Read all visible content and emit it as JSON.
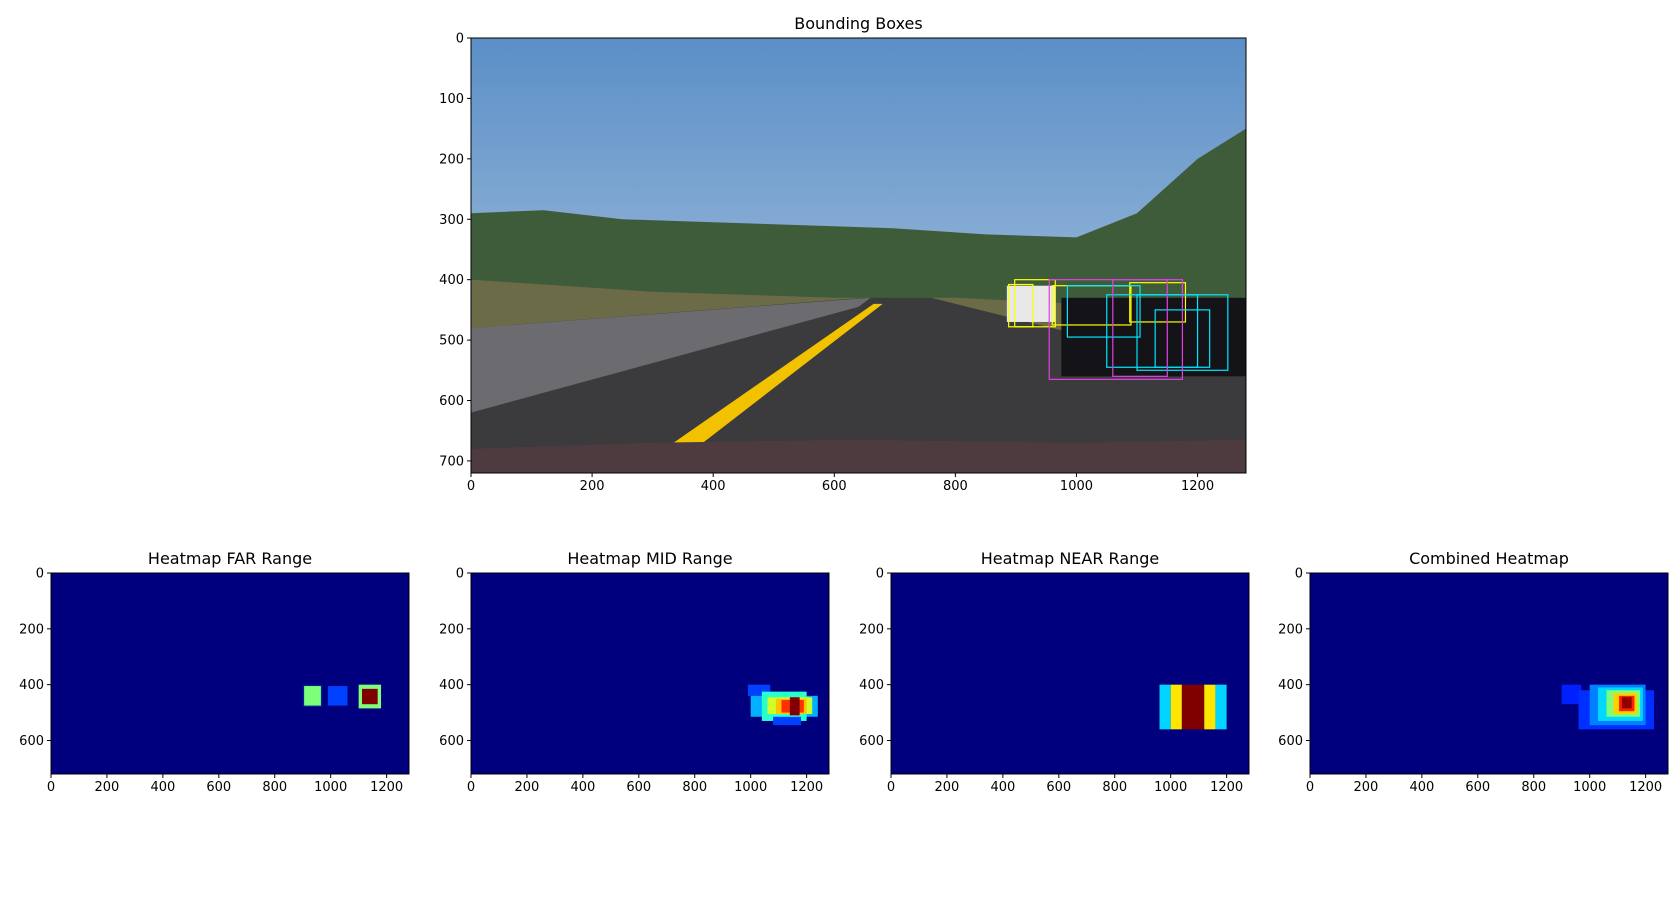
{
  "figure": {
    "background": "#ffffff",
    "text_color": "#000000"
  },
  "chart_data": [
    {
      "id": "bounding",
      "type": "image",
      "title": "Bounding Boxes",
      "xlim": [
        0,
        1280
      ],
      "ylim": [
        720,
        0
      ],
      "xticks": [
        0,
        200,
        400,
        600,
        800,
        1000,
        1200
      ],
      "yticks": [
        0,
        100,
        200,
        300,
        400,
        500,
        600,
        700
      ],
      "scene": {
        "sky_top": "#5b8fc7",
        "sky_bottom": "#b7cde3",
        "hills": "#3f5c3a",
        "road": "#3b3b3e",
        "lane_yellow": "#f2c200",
        "hood": "#4e3b3f"
      },
      "boxes": [
        {
          "color": "#ffff00",
          "x0": 888,
          "y0": 408,
          "x1": 928,
          "y1": 478
        },
        {
          "color": "#ffff00",
          "x0": 898,
          "y0": 400,
          "x1": 965,
          "y1": 478
        },
        {
          "color": "#ffff00",
          "x0": 960,
          "y0": 410,
          "x1": 1090,
          "y1": 475
        },
        {
          "color": "#ffff00",
          "x0": 1088,
          "y0": 405,
          "x1": 1180,
          "y1": 470
        },
        {
          "color": "#00e5ff",
          "x0": 985,
          "y0": 410,
          "x1": 1105,
          "y1": 495
        },
        {
          "color": "#00e5ff",
          "x0": 1050,
          "y0": 425,
          "x1": 1200,
          "y1": 545
        },
        {
          "color": "#00e5ff",
          "x0": 1100,
          "y0": 425,
          "x1": 1250,
          "y1": 550
        },
        {
          "color": "#00e5ff",
          "x0": 1130,
          "y0": 450,
          "x1": 1220,
          "y1": 545
        },
        {
          "color": "#e040e0",
          "x0": 955,
          "y0": 400,
          "x1": 1175,
          "y1": 565
        },
        {
          "color": "#e040e0",
          "x0": 1060,
          "y0": 400,
          "x1": 1150,
          "y1": 560
        }
      ]
    },
    {
      "id": "far",
      "type": "heatmap",
      "title": "Heatmap FAR Range",
      "xlim": [
        0,
        1280
      ],
      "ylim": [
        720,
        0
      ],
      "xticks": [
        0,
        200,
        400,
        600,
        800,
        1000,
        1200
      ],
      "yticks": [
        0,
        200,
        400,
        600
      ],
      "background": "#00007f",
      "cells": [
        {
          "x0": 900,
          "y0": 400,
          "x1": 970,
          "y1": 480,
          "color": "#00228c"
        },
        {
          "x0": 905,
          "y0": 405,
          "x1": 965,
          "y1": 475,
          "color": "#7dff7a"
        },
        {
          "x0": 990,
          "y0": 405,
          "x1": 1060,
          "y1": 475,
          "color": "#0040ff"
        },
        {
          "x0": 1100,
          "y0": 400,
          "x1": 1180,
          "y1": 485,
          "color": "#7dff7a"
        },
        {
          "x0": 1112,
          "y0": 415,
          "x1": 1168,
          "y1": 470,
          "color": "#800000"
        }
      ]
    },
    {
      "id": "mid",
      "type": "heatmap",
      "title": "Heatmap MID Range",
      "xlim": [
        0,
        1280
      ],
      "ylim": [
        720,
        0
      ],
      "xticks": [
        0,
        200,
        400,
        600,
        800,
        1000,
        1200
      ],
      "yticks": [
        0,
        200,
        400,
        600
      ],
      "background": "#00007f",
      "cells": [
        {
          "x0": 990,
          "y0": 400,
          "x1": 1070,
          "y1": 440,
          "color": "#0040ff"
        },
        {
          "x0": 1000,
          "y0": 440,
          "x1": 1240,
          "y1": 515,
          "color": "#00b0ff"
        },
        {
          "x0": 1040,
          "y0": 425,
          "x1": 1200,
          "y1": 530,
          "color": "#29ffce"
        },
        {
          "x0": 1080,
          "y0": 515,
          "x1": 1180,
          "y1": 545,
          "color": "#0040ff"
        },
        {
          "x0": 1060,
          "y0": 445,
          "x1": 1220,
          "y1": 505,
          "color": "#ceff29"
        },
        {
          "x0": 1090,
          "y0": 450,
          "x1": 1200,
          "y1": 505,
          "color": "#ffc400"
        },
        {
          "x0": 1110,
          "y0": 455,
          "x1": 1190,
          "y1": 500,
          "color": "#ff3000"
        },
        {
          "x0": 1140,
          "y0": 445,
          "x1": 1175,
          "y1": 510,
          "color": "#800000"
        }
      ]
    },
    {
      "id": "near",
      "type": "heatmap",
      "title": "Heatmap NEAR Range",
      "xlim": [
        0,
        1280
      ],
      "ylim": [
        720,
        0
      ],
      "xticks": [
        0,
        200,
        400,
        600,
        800,
        1000,
        1200
      ],
      "yticks": [
        0,
        200,
        400,
        600
      ],
      "background": "#00007f",
      "cells": [
        {
          "x0": 960,
          "y0": 400,
          "x1": 1000,
          "y1": 560,
          "color": "#00d4ff"
        },
        {
          "x0": 1000,
          "y0": 400,
          "x1": 1040,
          "y1": 560,
          "color": "#ffe600"
        },
        {
          "x0": 1040,
          "y0": 400,
          "x1": 1120,
          "y1": 560,
          "color": "#800000"
        },
        {
          "x0": 1120,
          "y0": 400,
          "x1": 1160,
          "y1": 560,
          "color": "#ffe600"
        },
        {
          "x0": 1160,
          "y0": 400,
          "x1": 1200,
          "y1": 560,
          "color": "#00d4ff"
        }
      ]
    },
    {
      "id": "combined",
      "type": "heatmap",
      "title": "Combined Heatmap",
      "xlim": [
        0,
        1280
      ],
      "ylim": [
        720,
        0
      ],
      "xticks": [
        0,
        200,
        400,
        600,
        800,
        1000,
        1200
      ],
      "yticks": [
        0,
        200,
        400,
        600
      ],
      "background": "#00007f",
      "cells": [
        {
          "x0": 900,
          "y0": 400,
          "x1": 970,
          "y1": 470,
          "color": "#0020ff"
        },
        {
          "x0": 960,
          "y0": 420,
          "x1": 1230,
          "y1": 560,
          "color": "#0030ff"
        },
        {
          "x0": 1000,
          "y0": 400,
          "x1": 1200,
          "y1": 545,
          "color": "#0080ff"
        },
        {
          "x0": 1030,
          "y0": 410,
          "x1": 1190,
          "y1": 530,
          "color": "#00d8ff"
        },
        {
          "x0": 1060,
          "y0": 420,
          "x1": 1180,
          "y1": 515,
          "color": "#7dff7a"
        },
        {
          "x0": 1085,
          "y0": 430,
          "x1": 1170,
          "y1": 505,
          "color": "#ffd000"
        },
        {
          "x0": 1105,
          "y0": 440,
          "x1": 1160,
          "y1": 495,
          "color": "#ff2000"
        },
        {
          "x0": 1115,
          "y0": 445,
          "x1": 1150,
          "y1": 485,
          "color": "#900000"
        }
      ]
    }
  ]
}
